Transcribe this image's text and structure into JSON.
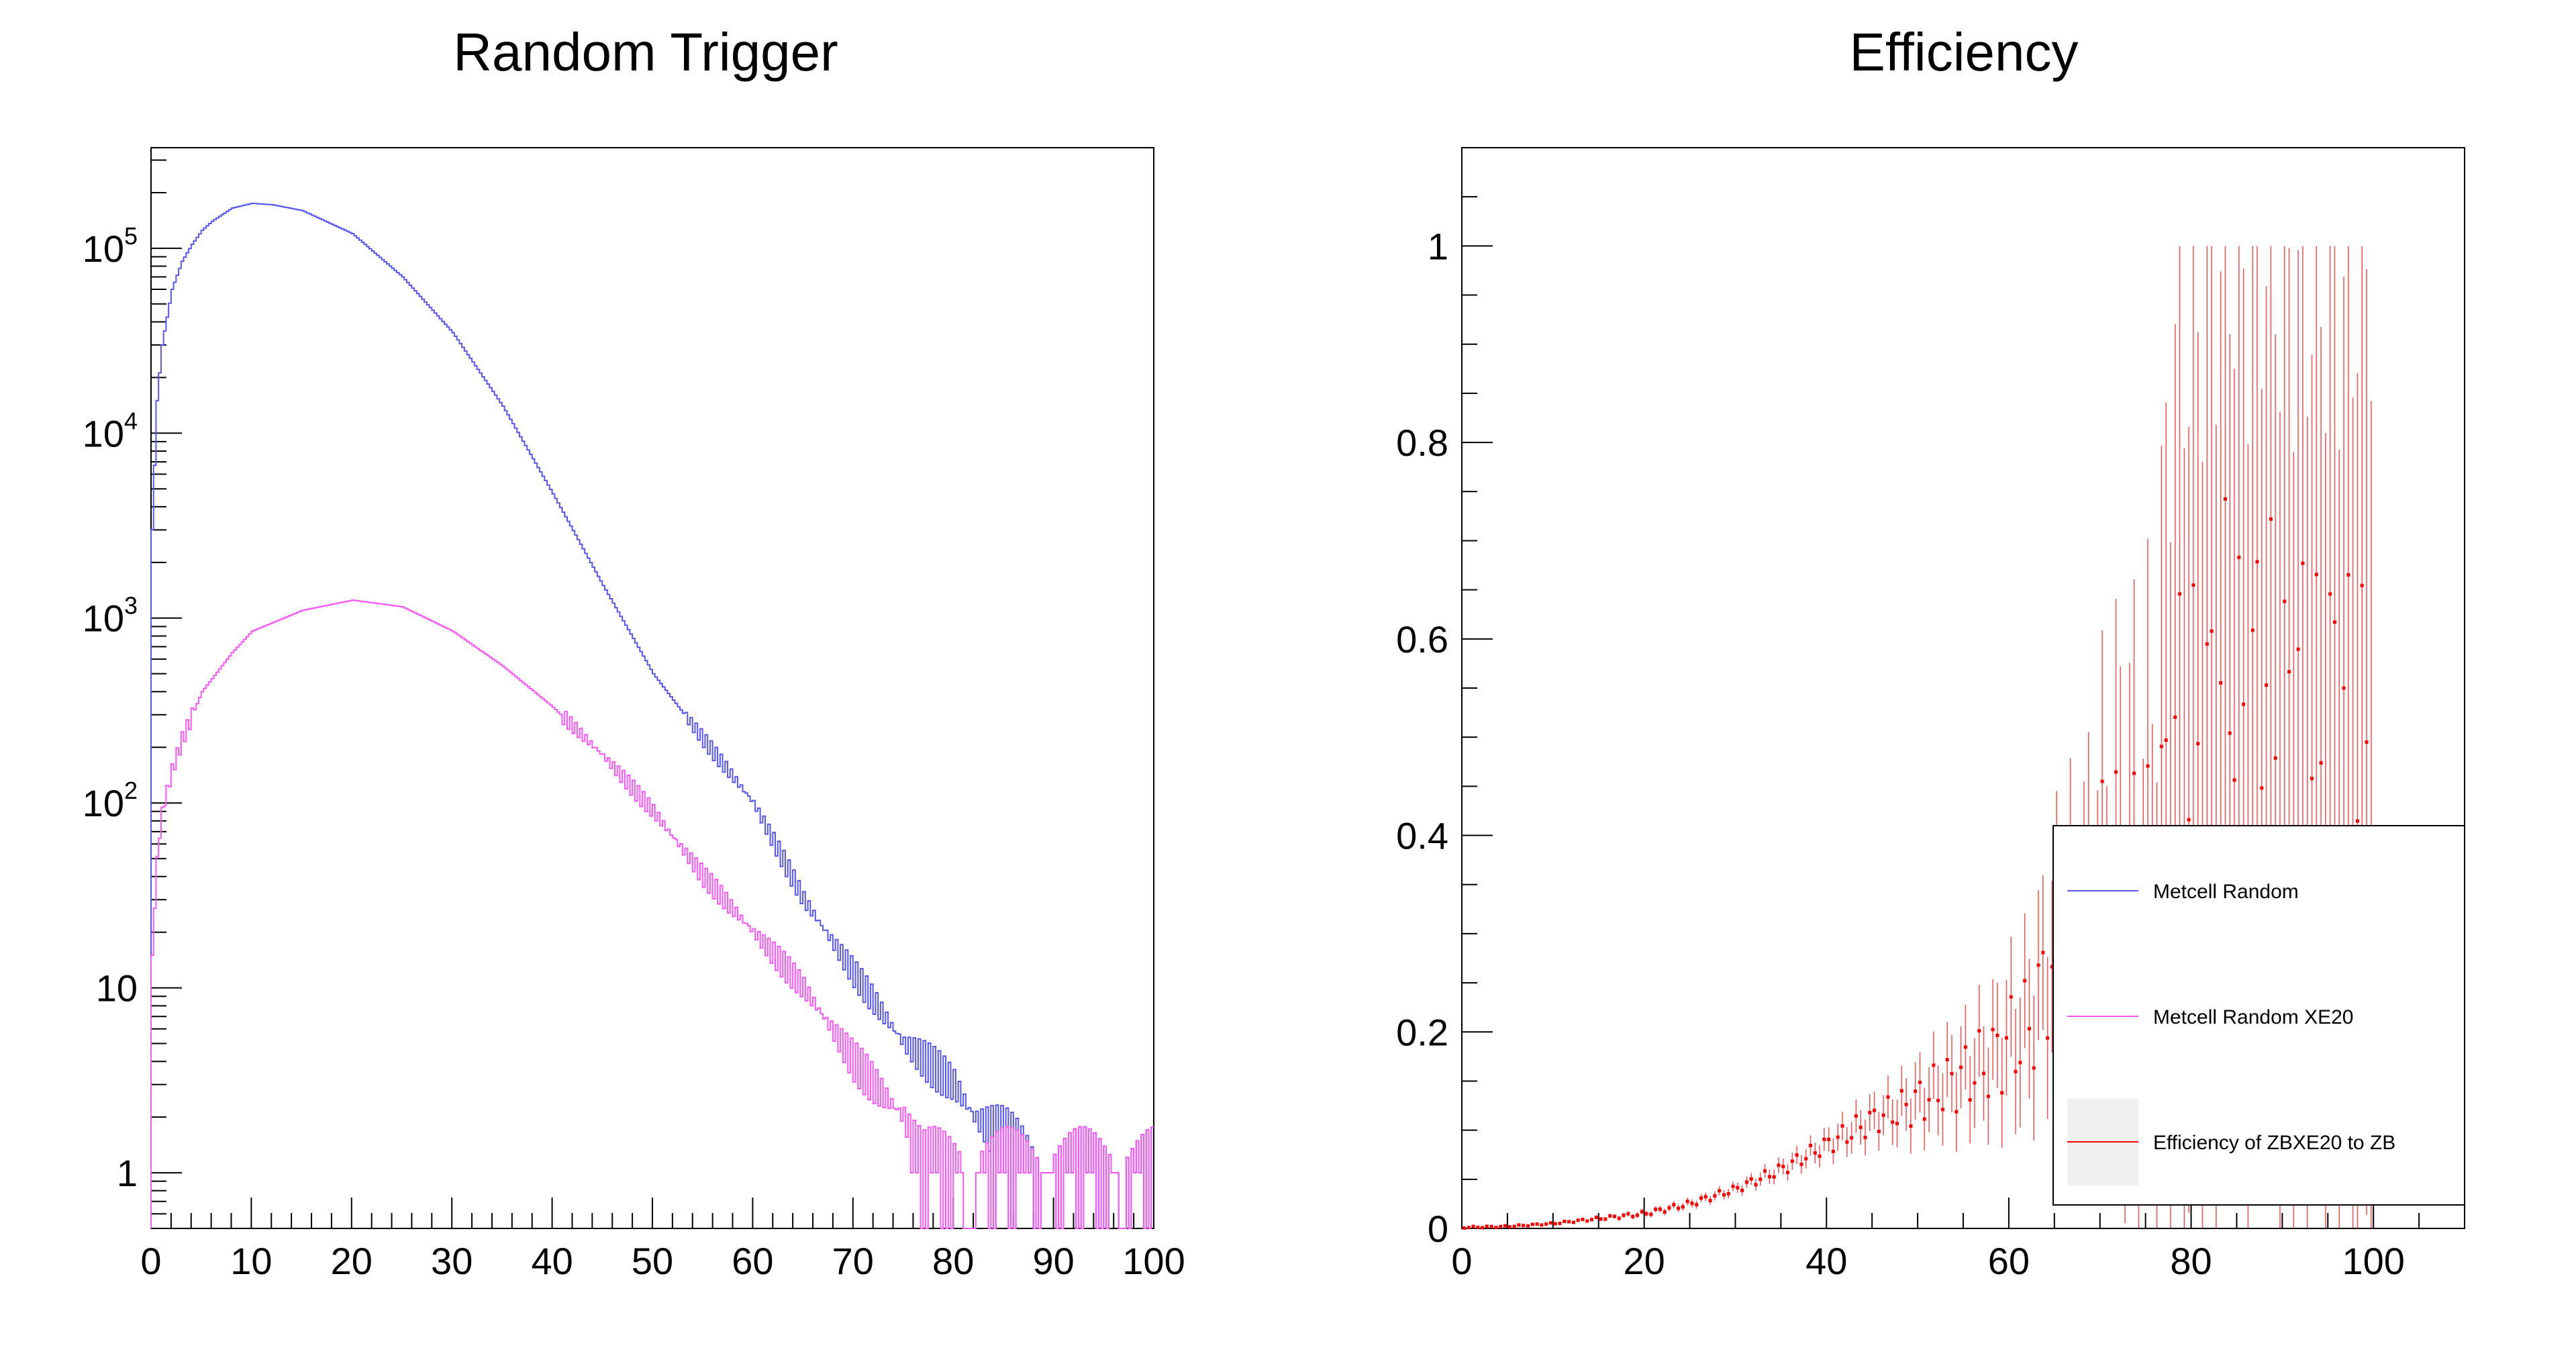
{
  "chart_data": [
    {
      "type": "line",
      "title": "Random Trigger",
      "xlabel": "",
      "ylabel": "",
      "xlim": [
        0,
        100
      ],
      "ylim": [
        0.5,
        350000
      ],
      "yscale": "log",
      "grid": false,
      "x_ticks": [
        "0",
        "10",
        "20",
        "30",
        "40",
        "50",
        "60",
        "70",
        "80",
        "90",
        "100"
      ],
      "y_ticks": [
        {
          "value": 1,
          "base": "1",
          "exp": ""
        },
        {
          "value": 10,
          "base": "10",
          "exp": ""
        },
        {
          "value": 100,
          "base": "10",
          "exp": "2"
        },
        {
          "value": 1000,
          "base": "10",
          "exp": "3"
        },
        {
          "value": 10000,
          "base": "10",
          "exp": "4"
        },
        {
          "value": 100000,
          "base": "10",
          "exp": "5"
        }
      ],
      "series": [
        {
          "name": "Metcell Random",
          "color": "#5555ff",
          "step": true,
          "x": [
            0,
            0.5,
            1,
            2,
            3,
            4,
            5,
            6,
            8,
            10,
            12,
            15,
            20,
            25,
            30,
            35,
            40,
            45,
            50,
            55,
            60,
            65,
            70,
            75,
            80,
            82,
            85,
            88,
            90,
            95,
            100
          ],
          "y": [
            3000,
            15000,
            30000,
            60000,
            85000,
            105000,
            125000,
            140000,
            165000,
            175000,
            172000,
            160000,
            120000,
            70000,
            35000,
            14000,
            4700,
            1500,
            500,
            220,
            100,
            30,
            12,
            5,
            3,
            2,
            1.5,
            1,
            1,
            1,
            1
          ]
        },
        {
          "name": "Metcell Random XE20",
          "color": "#ff55ff",
          "step": true,
          "x": [
            0,
            0.5,
            1,
            2,
            3,
            5,
            8,
            10,
            15,
            20,
            25,
            30,
            35,
            40,
            45,
            50,
            55,
            60,
            65,
            70,
            72,
            75,
            77,
            80,
            85,
            90,
            95,
            100
          ],
          "y": [
            15,
            50,
            90,
            150,
            220,
            400,
            650,
            850,
            1100,
            1250,
            1150,
            850,
            550,
            330,
            180,
            90,
            40,
            20,
            10,
            4,
            3,
            2,
            1,
            1,
            1,
            1,
            1,
            1
          ]
        }
      ]
    },
    {
      "type": "scatter",
      "title": "Efficiency",
      "xlabel": "",
      "ylabel": "",
      "xlim": [
        0,
        110
      ],
      "ylim": [
        0,
        1.1
      ],
      "grid": false,
      "x_ticks": [
        "0",
        "20",
        "40",
        "60",
        "80",
        "100"
      ],
      "y_ticks": [
        "0",
        "0.2",
        "0.4",
        "0.6",
        "0.8",
        "1"
      ],
      "legend": {
        "position": "bottom-right",
        "entries": [
          {
            "label": "Metcell Random",
            "color": "#5555ff"
          },
          {
            "label": "Metcell Random XE20",
            "color": "#ff55ff"
          },
          {
            "label": "Efficiency of ZBXE20 to ZB",
            "color": "#ff0000"
          }
        ]
      },
      "series": [
        {
          "name": "Efficiency of ZBXE20 to ZB",
          "color": "#ff0000",
          "x": [
            0,
            5,
            10,
            15,
            20,
            25,
            30,
            35,
            38,
            40,
            42,
            44,
            46,
            48,
            50,
            52,
            54,
            56,
            58,
            60,
            62,
            64,
            66,
            68,
            70,
            72,
            74,
            76,
            78,
            80,
            82,
            84,
            86,
            88,
            90,
            92,
            94,
            96,
            98,
            100
          ],
          "y": [
            0.001,
            0.002,
            0.005,
            0.01,
            0.015,
            0.025,
            0.04,
            0.06,
            0.075,
            0.085,
            0.095,
            0.105,
            0.115,
            0.12,
            0.13,
            0.14,
            0.15,
            0.16,
            0.17,
            0.19,
            0.2,
            0.25,
            0.3,
            0.28,
            0.33,
            0.35,
            0.33,
            0.3,
            0.5,
            0.5,
            0.5,
            0.6,
            0.5,
            0.6,
            0.5,
            0.55,
            0.5,
            0.55,
            0.5,
            0.5
          ],
          "err": [
            0.001,
            0.001,
            0.001,
            0.002,
            0.003,
            0.004,
            0.005,
            0.008,
            0.01,
            0.012,
            0.015,
            0.018,
            0.02,
            0.025,
            0.03,
            0.035,
            0.04,
            0.045,
            0.05,
            0.06,
            0.07,
            0.08,
            0.1,
            0.12,
            0.15,
            0.18,
            0.2,
            0.25,
            0.4,
            0.4,
            0.45,
            0.4,
            0.45,
            0.4,
            0.45,
            0.4,
            0.45,
            0.4,
            0.45,
            0.5
          ]
        }
      ]
    }
  ]
}
